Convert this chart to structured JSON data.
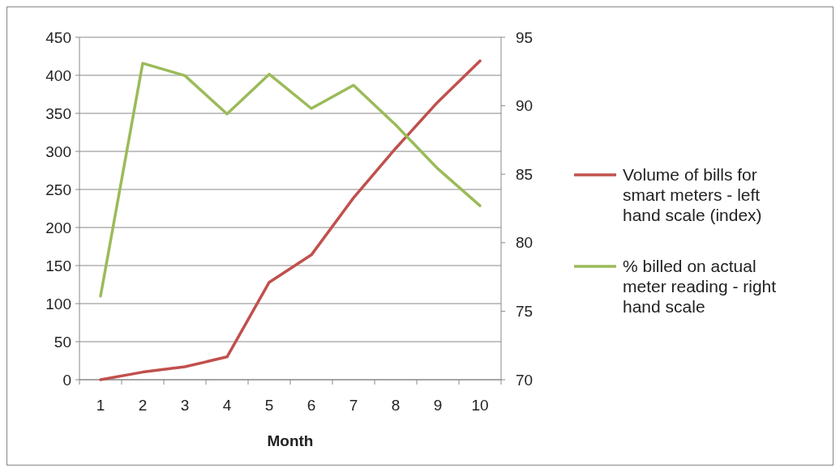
{
  "chart_data": {
    "type": "line",
    "xlabel": "Month",
    "categories": [
      "1",
      "2",
      "3",
      "4",
      "5",
      "6",
      "7",
      "8",
      "9",
      "10"
    ],
    "series": [
      {
        "name": "Volume of bills for smart meters - left hand scale (index)",
        "color": "#c0504d",
        "values": [
          0,
          10,
          17,
          30,
          128,
          164,
          239,
          304,
          365,
          419
        ]
      },
      {
        "name": "% billed on actual meter reading - right hand scale",
        "color": "#9bbb59",
        "axis": "y2",
        "values": [
          76.1,
          93.1,
          92.2,
          89.4,
          92.3,
          89.8,
          91.5,
          88.6,
          85.4,
          82.7
        ]
      }
    ],
    "ylim": [
      0,
      450
    ],
    "yticks": [
      0,
      50,
      100,
      150,
      200,
      250,
      300,
      350,
      400,
      450
    ],
    "y2lim": [
      70,
      95
    ],
    "y2ticks": [
      70,
      75,
      80,
      85,
      90,
      95
    ],
    "grid": "y",
    "legend": "right",
    "marker": "none",
    "line_style": "solid"
  }
}
